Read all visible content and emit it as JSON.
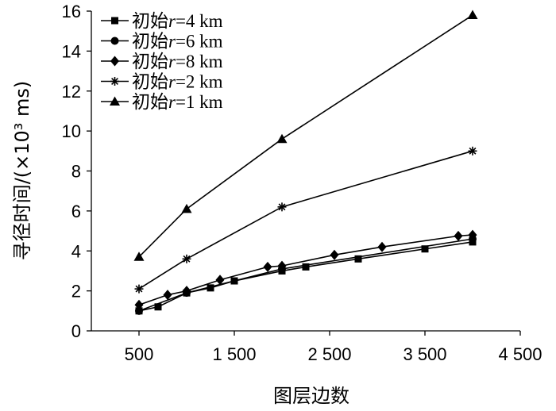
{
  "chart_data": {
    "type": "line",
    "xlabel": "图层边数",
    "ylabel": "寻径时间/(×10³ ms)",
    "xlim": [
      0,
      4500
    ],
    "ylim": [
      0,
      16
    ],
    "x_ticks": [
      500,
      1500,
      2500,
      3500,
      4500
    ],
    "x_tick_labels": [
      "500",
      "1 500",
      "2 500",
      "3 500",
      "4 500"
    ],
    "y_ticks": [
      0,
      2,
      4,
      6,
      8,
      10,
      12,
      14,
      16
    ],
    "y_tick_labels": [
      "0",
      "2",
      "4",
      "6",
      "8",
      "10",
      "12",
      "14",
      "16"
    ],
    "grid": false,
    "legend_position": "top-left",
    "series": [
      {
        "name": "初始r=4 km",
        "name_prefix": "初始",
        "name_var": "r",
        "name_suffix": "=4 km",
        "marker": "square",
        "points": [
          [
            500,
            1.0
          ],
          [
            700,
            1.2
          ],
          [
            1000,
            1.9
          ],
          [
            1250,
            2.15
          ],
          [
            1500,
            2.5
          ],
          [
            2000,
            3.0
          ],
          [
            2250,
            3.2
          ],
          [
            2800,
            3.6
          ],
          [
            3500,
            4.1
          ],
          [
            4000,
            4.45
          ]
        ]
      },
      {
        "name": "初始r=6 km",
        "name_prefix": "初始",
        "name_var": "r",
        "name_suffix": "=6 km",
        "marker": "circle",
        "points": [
          [
            500,
            1.0
          ],
          [
            1000,
            1.9
          ],
          [
            2000,
            3.1
          ],
          [
            4000,
            4.6
          ]
        ]
      },
      {
        "name": "初始r=8 km",
        "name_prefix": "初始",
        "name_var": "r",
        "name_suffix": "=8 km",
        "marker": "diamond",
        "points": [
          [
            500,
            1.3
          ],
          [
            800,
            1.8
          ],
          [
            1000,
            2.0
          ],
          [
            1350,
            2.55
          ],
          [
            1850,
            3.2
          ],
          [
            2000,
            3.25
          ],
          [
            2550,
            3.8
          ],
          [
            3050,
            4.2
          ],
          [
            3850,
            4.75
          ],
          [
            4000,
            4.8
          ]
        ]
      },
      {
        "name": "初始r=2 km",
        "name_prefix": "初始",
        "name_var": "r",
        "name_suffix": "=2 km",
        "marker": "star",
        "points": [
          [
            500,
            2.1
          ],
          [
            1000,
            3.6
          ],
          [
            2000,
            6.2
          ],
          [
            4000,
            9.0
          ]
        ]
      },
      {
        "name": "初始r=1 km",
        "name_prefix": "初始",
        "name_var": "r",
        "name_suffix": "=1 km",
        "marker": "triangle",
        "points": [
          [
            500,
            3.7
          ],
          [
            1000,
            6.1
          ],
          [
            2000,
            9.6
          ],
          [
            4000,
            15.8
          ]
        ]
      }
    ]
  }
}
